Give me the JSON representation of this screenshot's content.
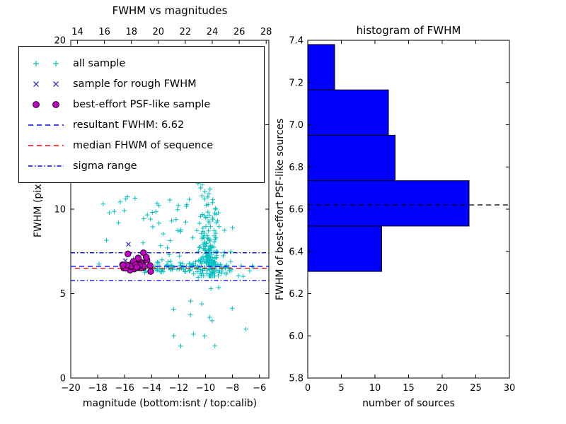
{
  "figure": {
    "left_plot": {
      "title": "FWHM vs magnitudes",
      "xlabel": "magnitude (bottom:isnt / top:calib)",
      "ylabel": "FWHM (pix)"
    },
    "right_plot": {
      "title": "histogram of FWHM",
      "xlabel": "number of sources",
      "ylabel": "FWHM of best-effort PSF-like sources"
    },
    "legend": {
      "entries": [
        {
          "label": "all sample",
          "type": "marker",
          "marker": "plus",
          "color": "#00bfbf"
        },
        {
          "label": "sample for rough FWHM",
          "type": "marker",
          "marker": "x",
          "color": "#3030c8"
        },
        {
          "label": "best-effort PSF-like sample",
          "type": "marker",
          "marker": "circle",
          "color": "#bf00bf"
        },
        {
          "label": "resultant FWHM: 6.62",
          "type": "line",
          "style": "dashed",
          "color": "#0000ee"
        },
        {
          "label": "median FHWM of sequence",
          "type": "line",
          "style": "dashed",
          "color": "#ff0000"
        },
        {
          "label": "sigma range",
          "type": "line",
          "style": "dashdot",
          "color": "#0000ee"
        }
      ]
    }
  },
  "chart_data": [
    {
      "type": "scatter",
      "title": "FWHM vs magnitudes",
      "xlabel": "magnitude (bottom:isnt / top:calib)",
      "ylabel": "FWHM (pix)",
      "x_bottom": {
        "name": "isnt magnitude",
        "range": [
          -20,
          -5.3
        ],
        "ticks": [
          -20,
          -18,
          -16,
          -14,
          -12,
          -10,
          -8,
          -6
        ],
        "labels": [
          "−20",
          "−18",
          "−16",
          "−14",
          "−12",
          "−10",
          "−8",
          "−6"
        ]
      },
      "x_top": {
        "name": "calib magnitude",
        "range": [
          13.5,
          28.2
        ],
        "ticks": [
          14,
          16,
          18,
          20,
          22,
          24,
          26,
          28
        ],
        "labels": [
          "14",
          "16",
          "18",
          "20",
          "22",
          "24",
          "26",
          "28"
        ]
      },
      "y": {
        "range": [
          0,
          20
        ],
        "ticks": [
          0,
          5,
          10,
          15,
          20
        ],
        "labels": [
          "0",
          "5",
          "10",
          "15",
          "20"
        ]
      },
      "series": [
        {
          "name": "all sample",
          "marker": "plus",
          "color": "#00bfbf",
          "clusters": [
            {
              "n": 120,
              "x": {
                "type": "gauss",
                "mu": -9.65,
                "sigma": 0.35
              },
              "y": {
                "type": "gauss",
                "mu": 7.3,
                "sigma": 0.9
              },
              "ymin": 6.05
            },
            {
              "n": 90,
              "x": {
                "type": "gauss",
                "mu": -9.75,
                "sigma": 0.45
              },
              "y": {
                "type": "gauss",
                "mu": 11.5,
                "sigma": 3.4
              },
              "ymin": 6.2
            },
            {
              "n": 110,
              "x": {
                "type": "uniform",
                "min": -14.6,
                "max": -8.0
              },
              "y": {
                "type": "gauss",
                "mu": 6.55,
                "sigma": 0.18
              }
            },
            {
              "n": 55,
              "x": {
                "type": "gauss",
                "mu": -12.6,
                "sigma": 2.1
              },
              "y": {
                "type": "gauss",
                "mu": 8.6,
                "sigma": 1.4
              },
              "xmin": -17.5,
              "xmax": -8.0,
              "ymin": 6.3
            },
            {
              "n": 12,
              "x": {
                "type": "uniform",
                "min": -12.6,
                "max": -7.6
              },
              "y": {
                "type": "uniform",
                "min": 1.8,
                "max": 5.4
              }
            },
            {
              "n": 8,
              "x": {
                "type": "uniform",
                "min": -17.6,
                "max": -14.6
              },
              "y": {
                "type": "uniform",
                "min": 8.6,
                "max": 11.8
              }
            },
            {
              "n": 6,
              "x": {
                "type": "uniform",
                "min": -7.8,
                "max": -6.3
              },
              "y": {
                "type": "gauss",
                "mu": 6.6,
                "sigma": 0.35
              }
            }
          ],
          "points": [
            [
              -17.9,
              6.75
            ],
            [
              -9.3,
              1.9
            ],
            [
              -7.0,
              2.9
            ],
            [
              -10.9,
              2.6
            ]
          ]
        },
        {
          "name": "sample for rough FWHM",
          "marker": "x",
          "color": "#3030c8",
          "points": [
            [
              -15.72,
              7.92
            ],
            [
              -15.95,
              6.95
            ],
            [
              -15.4,
              6.78
            ],
            [
              -15.1,
              6.6
            ],
            [
              -14.85,
              6.72
            ]
          ]
        },
        {
          "name": "best-effort PSF-like sample",
          "marker": "circle",
          "color": "#bf00bf",
          "clusters": [
            {
              "n": 38,
              "x": {
                "type": "gauss",
                "mu": -15.15,
                "sigma": 0.5
              },
              "y": {
                "type": "gauss",
                "mu": 6.78,
                "sigma": 0.28
              },
              "xmin": -16.15,
              "xmax": -14.05,
              "ymin": 6.25,
              "ymax": 7.42
            }
          ]
        }
      ],
      "lines": [
        {
          "name": "resultant-fwhm",
          "label": "resultant FWHM: 6.62",
          "value": 6.62,
          "style": "dashed",
          "color": "#0000ee"
        },
        {
          "name": "median-fwhm",
          "label": "median FHWM of sequence",
          "value": 6.5,
          "style": "dashed",
          "color": "#ff0000"
        },
        {
          "name": "sigma-upper",
          "label": "sigma range (upper)",
          "value": 7.42,
          "style": "dashdot",
          "color": "#0000ee"
        },
        {
          "name": "sigma-lower",
          "label": "sigma range (lower)",
          "value": 5.78,
          "style": "dashdot",
          "color": "#0000ee"
        }
      ],
      "legend_position": "upper left",
      "grid": false
    },
    {
      "type": "bar",
      "orientation": "horizontal",
      "title": "histogram of FWHM",
      "xlabel": "number of sources",
      "ylabel": "FWHM of best-effort PSF-like sources",
      "x": {
        "range": [
          0,
          30
        ],
        "ticks": [
          0,
          5,
          10,
          15,
          20,
          25,
          30
        ],
        "labels": [
          "0",
          "5",
          "10",
          "15",
          "20",
          "25",
          "30"
        ]
      },
      "y": {
        "range": [
          5.8,
          7.4
        ],
        "ticks": [
          5.8,
          6.0,
          6.2,
          6.4,
          6.6,
          6.8,
          7.0,
          7.2,
          7.4
        ],
        "labels": [
          "5.8",
          "6.0",
          "6.2",
          "6.4",
          "6.6",
          "6.8",
          "7.0",
          "7.2",
          "7.4"
        ]
      },
      "bin_edges": [
        6.305,
        6.52,
        6.735,
        6.95,
        7.165,
        7.38
      ],
      "counts": [
        11,
        24,
        13,
        12,
        4
      ],
      "bar_color": "#0000ff",
      "dashed_line_value": 6.62,
      "grid": false
    }
  ]
}
